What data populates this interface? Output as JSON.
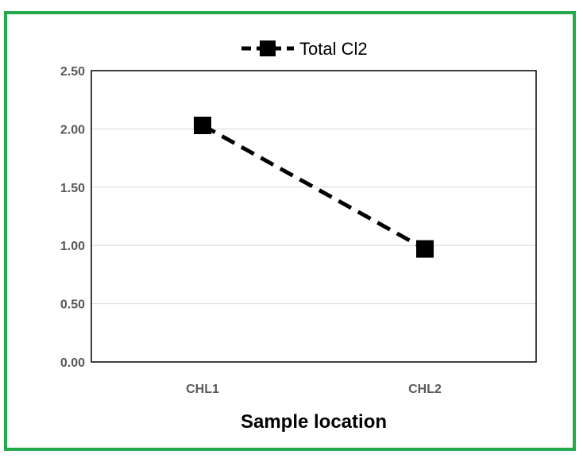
{
  "chart_data": {
    "type": "line",
    "categories": [
      "CHL1",
      "CHL2"
    ],
    "series": [
      {
        "name": "Total Cl2",
        "values": [
          2.03,
          0.97
        ]
      }
    ],
    "xlabel": "Sample location",
    "ylabel": "",
    "ylim": [
      0,
      2.5
    ],
    "yticks": [
      "0.00",
      "0.50",
      "1.00",
      "1.50",
      "2.00",
      "2.50"
    ],
    "grid": true,
    "legend_position": "top-center",
    "colors": {
      "frame": "#22a94a",
      "series": "#000000",
      "grid": "#d9d9d9"
    }
  }
}
